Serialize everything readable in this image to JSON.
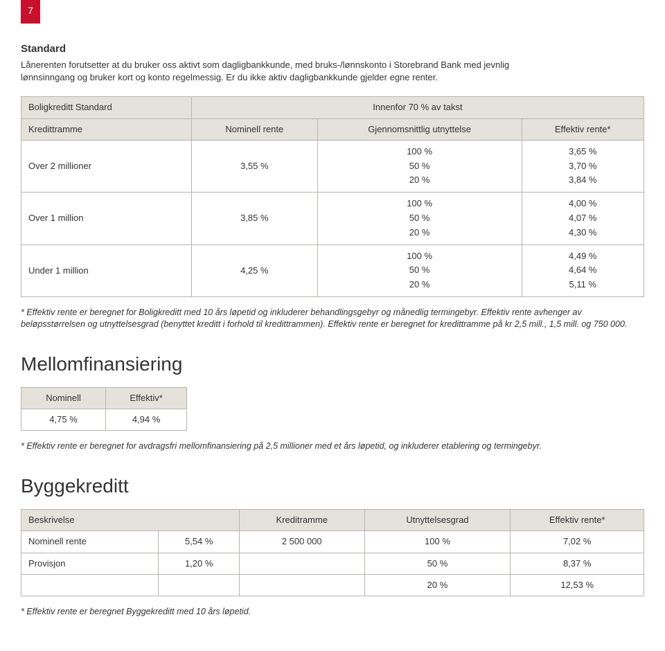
{
  "page_number": "7",
  "standard": {
    "heading": "Standard",
    "intro": "Lånerenten forutsetter at du bruker oss aktivt som dagligbankkunde, med bruks-/lønnskonto i Storebrand Bank med jevnlig lønnsinngang og bruker kort og konto regelmessig. Er du ikke aktiv dagligbankkunde gjelder egne renter.",
    "table": {
      "caption_left": "Boligkreditt Standard",
      "caption_right": "Innenfor 70 % av takst",
      "col_kredittramme": "Kredittramme",
      "col_nominell": "Nominell rente",
      "col_utnyttelse": "Gjennomsnittlig utnyttelse",
      "col_effektiv": "Effektiv rente*",
      "rows": [
        {
          "label": "Over 2 millioner",
          "nominell": "3,55 %",
          "u100": "100 %",
          "u50": "50 %",
          "u20": "20 %",
          "e100": "3,65 %",
          "e50": "3,70 %",
          "e20": "3,84 %"
        },
        {
          "label": "Over 1 million",
          "nominell": "3,85 %",
          "u100": "100 %",
          "u50": "50 %",
          "u20": "20 %",
          "e100": "4,00 %",
          "e50": "4,07 %",
          "e20": "4,30 %"
        },
        {
          "label": "Under 1 million",
          "nominell": "4,25 %",
          "u100": "100 %",
          "u50": "50 %",
          "u20": "20 %",
          "e100": "4,49 %",
          "e50": "4,64 %",
          "e20": "5,11 %"
        }
      ]
    },
    "footnote": "* Effektiv rente er beregnet for Boligkreditt med 10 års løpetid og inkluderer behandlingsgebyr og månedlig termingebyr. Effektiv rente avhenger av beløpsstørrelsen og utnyttelsesgrad (benyttet kreditt i forhold til kredittrammen). Effektiv rente er beregnet for kredittramme på kr 2,5 mill., 1,5 mill. og 750 000."
  },
  "mellom": {
    "heading": "Mellomfinansiering",
    "col_nominell": "Nominell",
    "col_effektiv": "Effektiv*",
    "nominell": "4,75 %",
    "effektiv": "4,94 %",
    "footnote": "* Effektiv rente er beregnet for avdragsfri mellomfinansiering på 2,5 millioner med et års løpetid, og inkluderer etablering og termingebyr."
  },
  "bygge": {
    "heading": "Byggekreditt",
    "col_beskrivelse": "Beskrivelse",
    "col_kreditramme": "Kreditramme",
    "col_utnyttelse": "Utnyttelsesgrad",
    "col_effektiv": "Effektiv rente*",
    "rows": [
      {
        "label": "Nominell rente",
        "pct": "5,54 %",
        "ramme": "2 500 000",
        "ut": "100 %",
        "eff": "7,02 %"
      },
      {
        "label": "Provisjon",
        "pct": "1,20 %",
        "ramme": "",
        "ut": "50 %",
        "eff": "8,37 %"
      },
      {
        "label": "",
        "pct": "",
        "ramme": "",
        "ut": "20 %",
        "eff": "12,53 %"
      }
    ],
    "footnote": "* Effektiv rente er beregnet Byggekreditt med 10 års løpetid."
  },
  "colors": {
    "tab_bg": "#c8102e",
    "header_bg": "#e5e1db",
    "border": "#b9b4ad",
    "text": "#333333"
  }
}
